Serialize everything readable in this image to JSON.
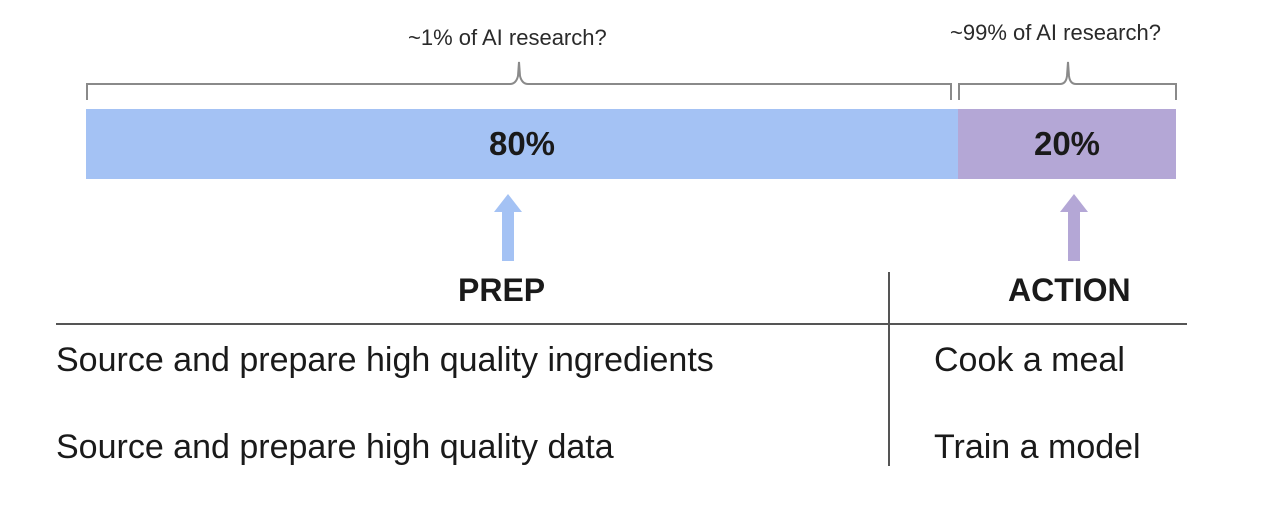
{
  "annotations": {
    "left": "~1% of AI research?",
    "right": "~99% of AI research?"
  },
  "bar": {
    "segments": [
      {
        "id": "prep",
        "label": "80%",
        "share": 0.8,
        "color": "#a4c2f4"
      },
      {
        "id": "action",
        "label": "20%",
        "share": 0.2,
        "color": "#b4a7d6"
      }
    ]
  },
  "arrows": {
    "prep_color": "#a4c2f4",
    "action_color": "#b4a7d6"
  },
  "table": {
    "headers": {
      "prep": "PREP",
      "action": "ACTION"
    },
    "rows": [
      {
        "prep": "Source and prepare high quality ingredients",
        "action": "Cook a meal"
      },
      {
        "prep": "Source and prepare high quality data",
        "action": "Train a model"
      }
    ]
  }
}
